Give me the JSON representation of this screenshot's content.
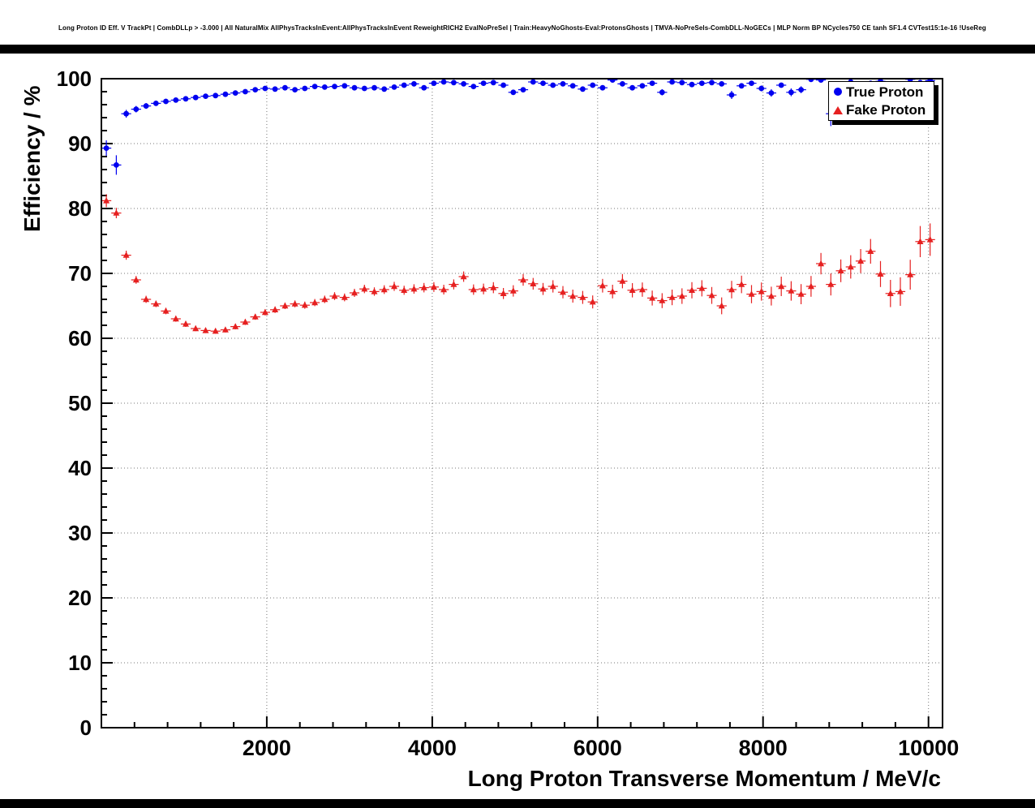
{
  "chart_data": {
    "type": "scatter",
    "title": "Long Proton ID Eff. V TrackPt | CombDLLp > -3.000 | All NaturalMix AllPhysTracksInEvent:AllPhysTracksInEvent ReweightRICH2 EvalNoPreSel | Train:HeavyNoGhosts-Eval:ProtonsGhosts | TMVA-NoPreSels-CombDLL-NoGECs | MLP Norm BP NCycles750 CE tanh SF1.4 CVTest15:1e-16 !UseReg",
    "xlabel": "Long Proton Transverse Momentum / MeV/c",
    "ylabel": "Efficiency / %",
    "xlim": [
      0,
      10170
    ],
    "ylim": [
      0,
      100
    ],
    "x_ticks": [
      2000,
      4000,
      6000,
      8000,
      10000
    ],
    "y_ticks": [
      0,
      10,
      20,
      30,
      40,
      50,
      60,
      70,
      80,
      90,
      100
    ],
    "x_minor_step": 400,
    "y_minor_step": 2,
    "grid": "dotted",
    "xerr": 60,
    "legend": {
      "position": "top-right",
      "entries": [
        {
          "label": "True Proton",
          "color": "#0000f0",
          "marker": "circle"
        },
        {
          "label": "Fake Proton",
          "color": "#e62020",
          "marker": "triangle"
        }
      ]
    },
    "x": [
      60,
      180,
      300,
      420,
      540,
      660,
      780,
      900,
      1020,
      1140,
      1260,
      1380,
      1500,
      1620,
      1740,
      1860,
      1980,
      2100,
      2220,
      2340,
      2460,
      2580,
      2700,
      2820,
      2940,
      3060,
      3180,
      3300,
      3420,
      3540,
      3660,
      3780,
      3900,
      4020,
      4140,
      4260,
      4380,
      4500,
      4620,
      4740,
      4860,
      4980,
      5100,
      5220,
      5340,
      5460,
      5580,
      5700,
      5820,
      5940,
      6060,
      6180,
      6300,
      6420,
      6540,
      6660,
      6780,
      6900,
      7020,
      7140,
      7260,
      7380,
      7500,
      7620,
      7740,
      7860,
      7980,
      8100,
      8220,
      8340,
      8460,
      8580,
      8700,
      8820,
      8940,
      9060,
      9180,
      9300,
      9420,
      9540,
      9660,
      9780,
      9900,
      10020
    ],
    "series": [
      {
        "name": "True Proton",
        "marker": "circle",
        "color": "#0000f0",
        "y": [
          89.3,
          86.7,
          94.6,
          95.3,
          95.8,
          96.2,
          96.5,
          96.7,
          96.9,
          97.1,
          97.3,
          97.4,
          97.6,
          97.8,
          98.0,
          98.3,
          98.5,
          98.4,
          98.6,
          98.3,
          98.5,
          98.8,
          98.7,
          98.8,
          98.9,
          98.6,
          98.5,
          98.6,
          98.4,
          98.7,
          99.0,
          99.2,
          98.6,
          99.3,
          99.5,
          99.4,
          99.2,
          98.8,
          99.3,
          99.4,
          99.0,
          97.9,
          98.3,
          99.5,
          99.3,
          99.0,
          99.2,
          98.9,
          98.4,
          99.0,
          98.6,
          99.8,
          99.2,
          98.6,
          98.9,
          99.3,
          97.9,
          99.5,
          99.4,
          99.1,
          99.3,
          99.4,
          99.2,
          97.5,
          98.9,
          99.3,
          98.5,
          97.8,
          99.0,
          97.9,
          98.3,
          99.9,
          99.8,
          94.6,
          99.0,
          99.5,
          98.0,
          99.3,
          99.6,
          98.8,
          99.2,
          99.9,
          99.4,
          99.7
        ],
        "yerr": [
          1.2,
          1.5,
          0.6,
          0.5,
          0.45,
          0.4,
          0.4,
          0.35,
          0.35,
          0.3,
          0.3,
          0.3,
          0.3,
          0.28,
          0.26,
          0.25,
          0.24,
          0.25,
          0.24,
          0.26,
          0.25,
          0.22,
          0.24,
          0.23,
          0.22,
          0.25,
          0.26,
          0.25,
          0.27,
          0.25,
          0.22,
          0.2,
          0.27,
          0.2,
          0.18,
          0.2,
          0.22,
          0.26,
          0.21,
          0.2,
          0.25,
          0.38,
          0.33,
          0.18,
          0.22,
          0.26,
          0.24,
          0.28,
          0.34,
          0.27,
          0.33,
          0.15,
          0.26,
          0.35,
          0.31,
          0.25,
          0.48,
          0.2,
          0.22,
          0.3,
          0.27,
          0.25,
          0.3,
          0.62,
          0.33,
          0.28,
          0.45,
          0.58,
          0.35,
          0.6,
          0.52,
          0.12,
          0.15,
          1.9,
          0.4,
          0.3,
          0.75,
          0.35,
          0.25,
          0.55,
          0.4,
          0.12,
          0.35,
          0.25
        ]
      },
      {
        "name": "Fake Proton",
        "marker": "triangle",
        "color": "#e62020",
        "y": [
          81.2,
          79.3,
          72.8,
          69.0,
          66.0,
          65.3,
          64.2,
          63.0,
          62.2,
          61.5,
          61.2,
          61.1,
          61.3,
          61.8,
          62.5,
          63.3,
          64.0,
          64.4,
          65.0,
          65.3,
          65.1,
          65.5,
          66.0,
          66.5,
          66.3,
          67.0,
          67.6,
          67.2,
          67.5,
          68.0,
          67.4,
          67.6,
          67.8,
          67.9,
          67.5,
          68.3,
          69.5,
          67.5,
          67.6,
          67.8,
          66.9,
          67.3,
          69.0,
          68.4,
          67.6,
          68.0,
          67.1,
          66.5,
          66.3,
          65.6,
          68.1,
          67.2,
          68.8,
          67.4,
          67.5,
          66.2,
          65.8,
          66.3,
          66.5,
          67.4,
          67.7,
          66.6,
          65.0,
          67.5,
          68.3,
          66.8,
          67.2,
          66.5,
          68.0,
          67.3,
          66.8,
          68.0,
          71.5,
          68.3,
          70.4,
          71.0,
          71.9,
          73.4,
          69.9,
          66.9,
          67.2,
          69.8,
          74.9,
          75.2
        ],
        "yerr": [
          1.0,
          0.8,
          0.7,
          0.6,
          0.55,
          0.5,
          0.5,
          0.45,
          0.45,
          0.4,
          0.4,
          0.4,
          0.4,
          0.42,
          0.45,
          0.45,
          0.48,
          0.5,
          0.5,
          0.52,
          0.55,
          0.55,
          0.58,
          0.6,
          0.6,
          0.62,
          0.65,
          0.65,
          0.68,
          0.7,
          0.7,
          0.72,
          0.72,
          0.75,
          0.75,
          0.78,
          0.8,
          0.8,
          0.82,
          0.85,
          0.85,
          0.88,
          0.9,
          0.9,
          0.92,
          0.95,
          0.95,
          1.0,
          1.0,
          1.0,
          1.05,
          1.05,
          1.1,
          1.1,
          1.1,
          1.15,
          1.15,
          1.2,
          1.2,
          1.25,
          1.25,
          1.3,
          1.3,
          1.35,
          1.35,
          1.4,
          1.4,
          1.45,
          1.5,
          1.5,
          1.55,
          1.6,
          1.65,
          1.7,
          1.75,
          1.8,
          1.85,
          1.9,
          2.0,
          2.1,
          2.2,
          2.3,
          2.4,
          2.5
        ]
      }
    ]
  },
  "colors": {
    "background": "#ffffff",
    "frame": "#000000",
    "grid": "#777777",
    "true_proton": "#0000f0",
    "fake_proton": "#e62020"
  }
}
